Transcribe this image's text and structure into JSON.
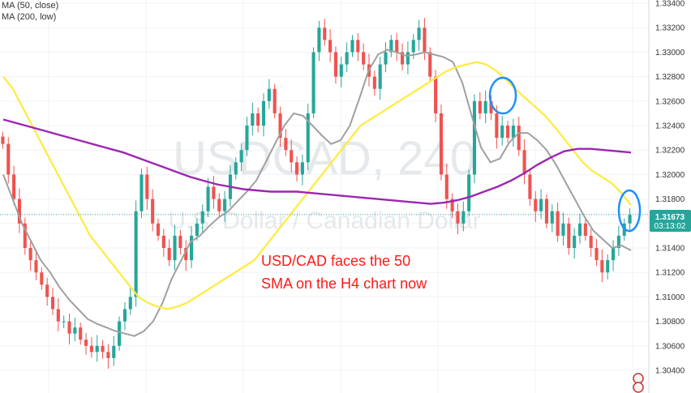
{
  "legend": {
    "ma50": "MA (50, close)",
    "ma200": "MA (200, low)"
  },
  "watermark": {
    "symbol": "USDCAD, 240",
    "name": "U.S. Dollar / Canadian Dollar"
  },
  "annotation": {
    "line1": "USD/CAD faces the 50",
    "line2": "SMA on the H4 chart now"
  },
  "price_label": {
    "price": "1.31673",
    "countdown": "03:13:02"
  },
  "colors": {
    "up": "#26a69a",
    "down": "#ef5350",
    "ma50": "#ffeb3b",
    "ma200": "#9c27b0",
    "ma_short": "#a0a0a0",
    "ellipse": "#1e90ff",
    "price_bg": "#26a69a",
    "annotation": "#ff1a1a"
  },
  "chart_data": {
    "type": "line",
    "title": "USDCAD, 240",
    "ylim": [
      1.304,
      1.334
    ],
    "y_ticks": [
      "1.33400",
      "1.33200",
      "1.33000",
      "1.32800",
      "1.32600",
      "1.32400",
      "1.32200",
      "1.32000",
      "1.31800",
      "1.31600",
      "1.31400",
      "1.31200",
      "1.31000",
      "1.30800",
      "1.30600",
      "1.30400"
    ],
    "price": [
      1.3225,
      1.32,
      1.318,
      1.316,
      1.314,
      1.313,
      1.312,
      1.311,
      1.31,
      1.309,
      1.308,
      1.308,
      1.307,
      1.3075,
      1.3065,
      1.306,
      1.3055,
      1.306,
      1.3055,
      1.305,
      1.306,
      1.308,
      1.309,
      1.31,
      1.317,
      1.32,
      1.318,
      1.316,
      1.315,
      1.314,
      1.313,
      1.315,
      1.314,
      1.313,
      1.315,
      1.316,
      1.317,
      1.319,
      1.318,
      1.317,
      1.318,
      1.32,
      1.321,
      1.322,
      1.324,
      1.325,
      1.324,
      1.326,
      1.327,
      1.325,
      1.323,
      1.322,
      1.321,
      1.32,
      1.321,
      1.325,
      1.33,
      1.332,
      1.331,
      1.33,
      1.328,
      1.329,
      1.33,
      1.331,
      1.33,
      1.329,
      1.328,
      1.327,
      1.329,
      1.33,
      1.331,
      1.33,
      1.329,
      1.33,
      1.331,
      1.332,
      1.33,
      1.328,
      1.325,
      1.32,
      1.318,
      1.317,
      1.316,
      1.317,
      1.32,
      1.326,
      1.325,
      1.326,
      1.325,
      1.323,
      1.324,
      1.323,
      1.324,
      1.322,
      1.32,
      1.318,
      1.317,
      1.318,
      1.316,
      1.317,
      1.315,
      1.316,
      1.314,
      1.315,
      1.316,
      1.315,
      1.314,
      1.313,
      1.312,
      1.313,
      1.314,
      1.315,
      1.316,
      1.3167
    ],
    "series": [
      {
        "name": "MA (50, close)",
        "values": [
          1.328,
          1.327,
          1.3255,
          1.324,
          1.3225,
          1.321,
          1.3195,
          1.318,
          1.3165,
          1.315,
          1.314,
          1.313,
          1.312,
          1.311,
          1.31,
          1.3095,
          1.3092,
          1.309,
          1.3092,
          1.3095,
          1.31,
          1.3105,
          1.311,
          1.3115,
          1.312,
          1.3125,
          1.313,
          1.314,
          1.315,
          1.316,
          1.317,
          1.318,
          1.319,
          1.32,
          1.321,
          1.322,
          1.323,
          1.324,
          1.3245,
          1.325,
          1.3255,
          1.326,
          1.3265,
          1.327,
          1.3275,
          1.328,
          1.3285,
          1.3288,
          1.329,
          1.3292,
          1.329,
          1.3285,
          1.3278,
          1.327,
          1.3263,
          1.3256,
          1.3249,
          1.324,
          1.323,
          1.322,
          1.321,
          1.3203,
          1.3198,
          1.3193,
          1.3185,
          1.3175
        ]
      },
      {
        "name": "MA (200, low)",
        "values": [
          1.3245,
          1.3242,
          1.3239,
          1.3236,
          1.3233,
          1.323,
          1.3227,
          1.3224,
          1.3221,
          1.3218,
          1.3214,
          1.321,
          1.3206,
          1.3202,
          1.3198,
          1.3195,
          1.3192,
          1.319,
          1.3188,
          1.3187,
          1.3186,
          1.3186,
          1.3186,
          1.3185,
          1.3184,
          1.3183,
          1.3182,
          1.3181,
          1.318,
          1.3179,
          1.3178,
          1.3177,
          1.3176,
          1.3177,
          1.3179,
          1.3182,
          1.3186,
          1.319,
          1.3195,
          1.3201,
          1.3208,
          1.3214,
          1.3219,
          1.3221,
          1.3221,
          1.322,
          1.3219,
          1.3218
        ]
      },
      {
        "values": [
          1.32,
          1.318,
          1.316,
          1.3145,
          1.313,
          1.312,
          1.3108,
          1.3098,
          1.309,
          1.3082,
          1.3078,
          1.3075,
          1.3072,
          1.307,
          1.3068,
          1.3072,
          1.308,
          1.3095,
          1.3115,
          1.313,
          1.3145,
          1.315,
          1.3158,
          1.3165,
          1.317,
          1.3178,
          1.3186,
          1.3195,
          1.321,
          1.3225,
          1.324,
          1.325,
          1.3248,
          1.324,
          1.3232,
          1.3225,
          1.3228,
          1.324,
          1.3262,
          1.3285,
          1.3298,
          1.3302,
          1.33,
          1.3297,
          1.3298,
          1.33,
          1.3298,
          1.3296,
          1.3292,
          1.3275,
          1.3248,
          1.3222,
          1.321,
          1.3213,
          1.3226,
          1.3234,
          1.3234,
          1.3228,
          1.322,
          1.3208,
          1.3194,
          1.318,
          1.3166,
          1.3154,
          1.3147,
          1.314,
          1.3142,
          1.3138
        ]
      }
    ]
  }
}
